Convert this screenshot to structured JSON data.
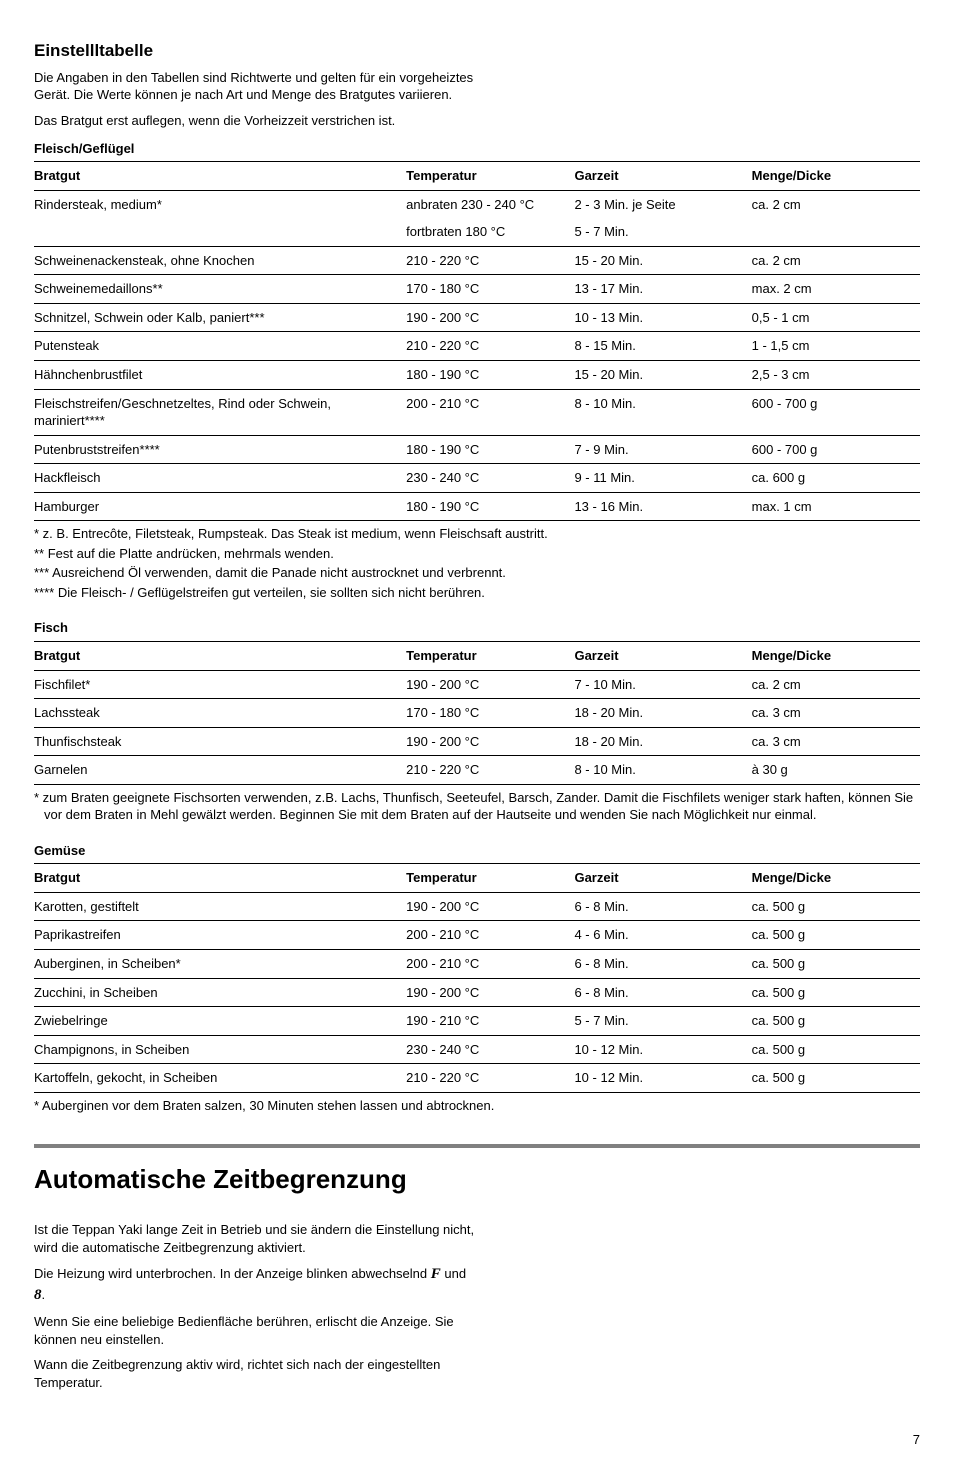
{
  "settings": {
    "title": "Einstellltabelle",
    "intro1": "Die Angaben in den Tabellen sind Richtwerte und gelten für ein vorgeheiztes Gerät. Die Werte können je nach Art und Menge des Bratgutes variieren.",
    "intro2": "Das Bratgut erst auflegen, wenn die Vorheizzeit verstrichen ist."
  },
  "col_headers": {
    "bratgut": "Bratgut",
    "temperatur": "Temperatur",
    "garzeit": "Garzeit",
    "menge": "Menge/Dicke"
  },
  "meat": {
    "heading": "Fleisch/Geflügel",
    "rows": [
      {
        "b": "Rindersteak, medium*",
        "t": "anbraten 230 - 240 °C",
        "g": "2 - 3 Min. je Seite",
        "m": "ca. 2 cm",
        "nb": true
      },
      {
        "b": "",
        "t": "fortbraten 180 °C",
        "g": "5 - 7 Min.",
        "m": ""
      },
      {
        "b": "Schweinenackensteak, ohne Knochen",
        "t": "210 - 220 °C",
        "g": "15 - 20 Min.",
        "m": "ca. 2 cm"
      },
      {
        "b": "Schweinemedaillons**",
        "t": "170 - 180 °C",
        "g": "13 - 17 Min.",
        "m": "max. 2 cm"
      },
      {
        "b": "Schnitzel, Schwein oder Kalb, paniert***",
        "t": "190 - 200 °C",
        "g": "10 - 13 Min.",
        "m": "0,5 - 1 cm"
      },
      {
        "b": "Putensteak",
        "t": "210 - 220 °C",
        "g": "8 - 15 Min.",
        "m": "1 - 1,5 cm"
      },
      {
        "b": "Hähnchenbrustfilet",
        "t": "180 - 190 °C",
        "g": "15 - 20 Min.",
        "m": "2,5 - 3 cm"
      },
      {
        "b": "Fleischstreifen/Geschnetzeltes, Rind oder Schwein, mariniert****",
        "t": "200 - 210 °C",
        "g": "8 - 10 Min.",
        "m": "600 - 700 g"
      },
      {
        "b": "Putenbruststreifen****",
        "t": "180 - 190 °C",
        "g": "7 - 9 Min.",
        "m": "600 - 700 g"
      },
      {
        "b": "Hackfleisch",
        "t": "230 - 240 °C",
        "g": "9 - 11 Min.",
        "m": "ca. 600 g"
      },
      {
        "b": "Hamburger",
        "t": "180 - 190 °C",
        "g": "13 - 16 Min.",
        "m": "max. 1 cm",
        "last": true
      }
    ],
    "fn1": "* z. B. Entrecôte, Filetsteak, Rumpsteak. Das Steak ist medium, wenn Fleischsaft austritt.",
    "fn2": "** Fest auf die Platte andrücken, mehrmals wenden.",
    "fn3": "*** Ausreichend Öl verwenden, damit die Panade nicht austrocknet und verbrennt.",
    "fn4": "**** Die Fleisch- / Geflügelstreifen gut verteilen, sie sollten sich nicht berühren."
  },
  "fish": {
    "heading": "Fisch",
    "rows": [
      {
        "b": "Fischfilet*",
        "t": "190 - 200 °C",
        "g": "7 - 10 Min.",
        "m": "ca. 2 cm"
      },
      {
        "b": "Lachssteak",
        "t": "170 - 180 °C",
        "g": "18 - 20 Min.",
        "m": "ca. 3 cm"
      },
      {
        "b": "Thunfischsteak",
        "t": "190 - 200 °C",
        "g": "18 - 20 Min.",
        "m": "ca. 3 cm"
      },
      {
        "b": "Garnelen",
        "t": "210 - 220 °C",
        "g": "8 - 10 Min.",
        "m": "à 30 g",
        "last": true
      }
    ],
    "fn": "* zum Braten geeignete Fischsorten verwenden, z.B. Lachs, Thunfisch, Seeteufel, Barsch, Zander. Damit die Fischfilets weniger stark haften, können Sie vor dem Braten in Mehl gewälzt werden. Beginnen Sie mit dem Braten auf der Hautseite und wenden Sie nach Möglichkeit nur einmal."
  },
  "veg": {
    "heading": "Gemüse",
    "rows": [
      {
        "b": "Karotten, gestiftelt",
        "t": "190 - 200 °C",
        "g": "6 - 8 Min.",
        "m": "ca. 500 g"
      },
      {
        "b": "Paprikastreifen",
        "t": "200 - 210 °C",
        "g": "4 - 6 Min.",
        "m": "ca. 500 g"
      },
      {
        "b": "Auberginen, in Scheiben*",
        "t": "200 - 210 °C",
        "g": "6 - 8 Min.",
        "m": "ca. 500 g"
      },
      {
        "b": "Zucchini, in Scheiben",
        "t": "190 - 200 °C",
        "g": "6 - 8 Min.",
        "m": "ca. 500 g"
      },
      {
        "b": "Zwiebelringe",
        "t": "190 - 210 °C",
        "g": "5 - 7 Min.",
        "m": "ca. 500 g"
      },
      {
        "b": "Champignons, in Scheiben",
        "t": "230 - 240 °C",
        "g": "10 - 12 Min.",
        "m": "ca. 500 g"
      },
      {
        "b": "Kartoffeln, gekocht, in Scheiben",
        "t": "210 - 220 °C",
        "g": "10 - 12 Min.",
        "m": "ca. 500 g",
        "last": true
      }
    ],
    "fn": "* Auberginen vor dem Braten salzen, 30 Minuten stehen lassen und abtrocknen."
  },
  "auto": {
    "title": "Automatische Zeitbegrenzung",
    "p1": "Ist die Teppan Yaki lange Zeit in Betrieb und sie ändern die Einstellung nicht, wird die automatische Zeitbegrenzung aktiviert.",
    "p2a": "Die Heizung wird unterbrochen. In der Anzeige blinken abwechselnd ",
    "p2b": " und ",
    "p2c": ".",
    "sym1": "F",
    "sym2": "8",
    "p3": "Wenn Sie eine beliebige Bedienfläche berühren, erlischt die Anzeige. Sie können neu einstellen.",
    "p4": "Wann die Zeitbegrenzung aktiv wird, richtet sich nach der eingestellten Temperatur."
  },
  "page": "7"
}
